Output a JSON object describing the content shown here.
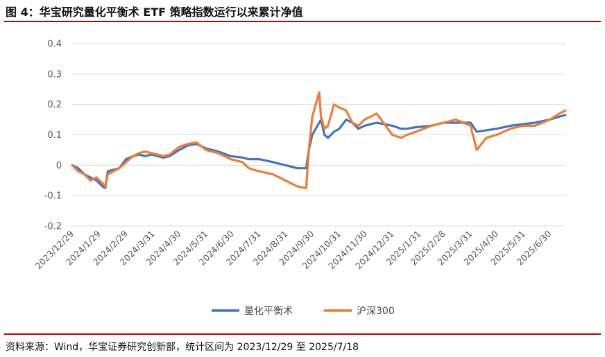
{
  "title": "图 4：华宝研究量化平衡术 ETF 策略指数运行以来累计净值",
  "source": "资料来源：Wind，华宝证券研究创新部，统计区间为 2023/12/29 至 2025/7/18",
  "colors": {
    "series1": "#4472c4",
    "series2": "#ed7d31",
    "accent": "#c00000"
  },
  "chart_data": {
    "type": "line",
    "ylim": [
      -0.2,
      0.4
    ],
    "yticks": [
      "0.4",
      "0.3",
      "0.2",
      "0.1",
      "0",
      "-0.1",
      "-0.2"
    ],
    "ytick_values": [
      0.4,
      0.3,
      0.2,
      0.1,
      0,
      -0.1,
      -0.2
    ],
    "xticks": [
      "2023/12/29",
      "2024/1/29",
      "2024/2/29",
      "2024/3/31",
      "2024/4/30",
      "2024/5/31",
      "2024/6/30",
      "2024/7/31",
      "2024/8/31",
      "2024/9/30",
      "2024/10/31",
      "2024/11/30",
      "2024/12/31",
      "2025/1/31",
      "2025/2/28",
      "2025/3/31",
      "2025/4/30",
      "2025/5/31",
      "2025/6/30"
    ],
    "x_end": "2025/7/18",
    "legend_position": "bottom",
    "series": [
      {
        "name": "量化平衡术",
        "points": [
          [
            "2023/12/29",
            0.0
          ],
          [
            "2024/1/5",
            -0.01
          ],
          [
            "2024/1/12",
            -0.03
          ],
          [
            "2024/1/19",
            -0.04
          ],
          [
            "2024/1/26",
            -0.05
          ],
          [
            "2024/2/2",
            -0.07
          ],
          [
            "2024/2/5",
            -0.075
          ],
          [
            "2024/2/8",
            -0.02
          ],
          [
            "2024/2/21",
            -0.01
          ],
          [
            "2024/2/29",
            0.02
          ],
          [
            "2024/3/8",
            0.03
          ],
          [
            "2024/3/15",
            0.035
          ],
          [
            "2024/3/22",
            0.03
          ],
          [
            "2024/3/29",
            0.035
          ],
          [
            "2024/4/12",
            0.025
          ],
          [
            "2024/4/19",
            0.03
          ],
          [
            "2024/4/30",
            0.05
          ],
          [
            "2024/5/10",
            0.065
          ],
          [
            "2024/5/20",
            0.07
          ],
          [
            "2024/5/31",
            0.055
          ],
          [
            "2024/6/14",
            0.045
          ],
          [
            "2024/6/28",
            0.03
          ],
          [
            "2024/7/12",
            0.025
          ],
          [
            "2024/7/19",
            0.02
          ],
          [
            "2024/7/31",
            0.02
          ],
          [
            "2024/8/16",
            0.01
          ],
          [
            "2024/8/30",
            0.0
          ],
          [
            "2024/9/13",
            -0.01
          ],
          [
            "2024/9/23",
            -0.01
          ],
          [
            "2024/9/26",
            0.05
          ],
          [
            "2024/9/30",
            0.1
          ],
          [
            "2024/10/8",
            0.14
          ],
          [
            "2024/10/10",
            0.15
          ],
          [
            "2024/10/14",
            0.1
          ],
          [
            "2024/10/18",
            0.09
          ],
          [
            "2024/10/25",
            0.11
          ],
          [
            "2024/10/31",
            0.12
          ],
          [
            "2024/11/8",
            0.15
          ],
          [
            "2024/11/15",
            0.14
          ],
          [
            "2024/11/22",
            0.12
          ],
          [
            "2024/11/29",
            0.13
          ],
          [
            "2024/12/13",
            0.14
          ],
          [
            "2024/12/31",
            0.13
          ],
          [
            "2025/1/10",
            0.12
          ],
          [
            "2025/1/17",
            0.12
          ],
          [
            "2025/1/27",
            0.125
          ],
          [
            "2025/2/14",
            0.13
          ],
          [
            "2025/2/28",
            0.14
          ],
          [
            "2025/3/14",
            0.14
          ],
          [
            "2025/3/31",
            0.14
          ],
          [
            "2025/4/7",
            0.11
          ],
          [
            "2025/4/18",
            0.115
          ],
          [
            "2025/4/30",
            0.12
          ],
          [
            "2025/5/16",
            0.13
          ],
          [
            "2025/5/30",
            0.135
          ],
          [
            "2025/6/13",
            0.14
          ],
          [
            "2025/6/30",
            0.15
          ],
          [
            "2025/7/11",
            0.16
          ],
          [
            "2025/7/18",
            0.165
          ]
        ]
      },
      {
        "name": "沪深300",
        "points": [
          [
            "2023/12/29",
            0.0
          ],
          [
            "2024/1/5",
            -0.02
          ],
          [
            "2024/1/12",
            -0.03
          ],
          [
            "2024/1/19",
            -0.05
          ],
          [
            "2024/1/26",
            -0.04
          ],
          [
            "2024/2/2",
            -0.06
          ],
          [
            "2024/2/5",
            -0.07
          ],
          [
            "2024/2/8",
            -0.03
          ],
          [
            "2024/2/21",
            -0.01
          ],
          [
            "2024/2/29",
            0.01
          ],
          [
            "2024/3/8",
            0.03
          ],
          [
            "2024/3/15",
            0.04
          ],
          [
            "2024/3/22",
            0.045
          ],
          [
            "2024/3/29",
            0.04
          ],
          [
            "2024/4/12",
            0.03
          ],
          [
            "2024/4/19",
            0.035
          ],
          [
            "2024/4/30",
            0.06
          ],
          [
            "2024/5/10",
            0.07
          ],
          [
            "2024/5/20",
            0.075
          ],
          [
            "2024/5/31",
            0.05
          ],
          [
            "2024/6/14",
            0.04
          ],
          [
            "2024/6/28",
            0.02
          ],
          [
            "2024/7/12",
            0.01
          ],
          [
            "2024/7/19",
            -0.01
          ],
          [
            "2024/7/31",
            -0.02
          ],
          [
            "2024/8/16",
            -0.03
          ],
          [
            "2024/8/30",
            -0.05
          ],
          [
            "2024/9/13",
            -0.07
          ],
          [
            "2024/9/23",
            -0.075
          ],
          [
            "2024/9/26",
            0.05
          ],
          [
            "2024/9/30",
            0.16
          ],
          [
            "2024/10/8",
            0.24
          ],
          [
            "2024/10/10",
            0.16
          ],
          [
            "2024/10/14",
            0.12
          ],
          [
            "2024/10/18",
            0.13
          ],
          [
            "2024/10/25",
            0.2
          ],
          [
            "2024/10/31",
            0.19
          ],
          [
            "2024/11/8",
            0.18
          ],
          [
            "2024/11/15",
            0.14
          ],
          [
            "2024/11/22",
            0.13
          ],
          [
            "2024/11/29",
            0.15
          ],
          [
            "2024/12/13",
            0.17
          ],
          [
            "2024/12/31",
            0.1
          ],
          [
            "2025/1/10",
            0.09
          ],
          [
            "2025/1/17",
            0.1
          ],
          [
            "2025/1/27",
            0.11
          ],
          [
            "2025/2/14",
            0.13
          ],
          [
            "2025/2/28",
            0.14
          ],
          [
            "2025/3/14",
            0.15
          ],
          [
            "2025/3/31",
            0.13
          ],
          [
            "2025/4/7",
            0.05
          ],
          [
            "2025/4/18",
            0.09
          ],
          [
            "2025/4/30",
            0.1
          ],
          [
            "2025/5/16",
            0.12
          ],
          [
            "2025/5/30",
            0.13
          ],
          [
            "2025/6/13",
            0.13
          ],
          [
            "2025/6/30",
            0.15
          ],
          [
            "2025/7/11",
            0.17
          ],
          [
            "2025/7/18",
            0.18
          ]
        ]
      }
    ]
  }
}
